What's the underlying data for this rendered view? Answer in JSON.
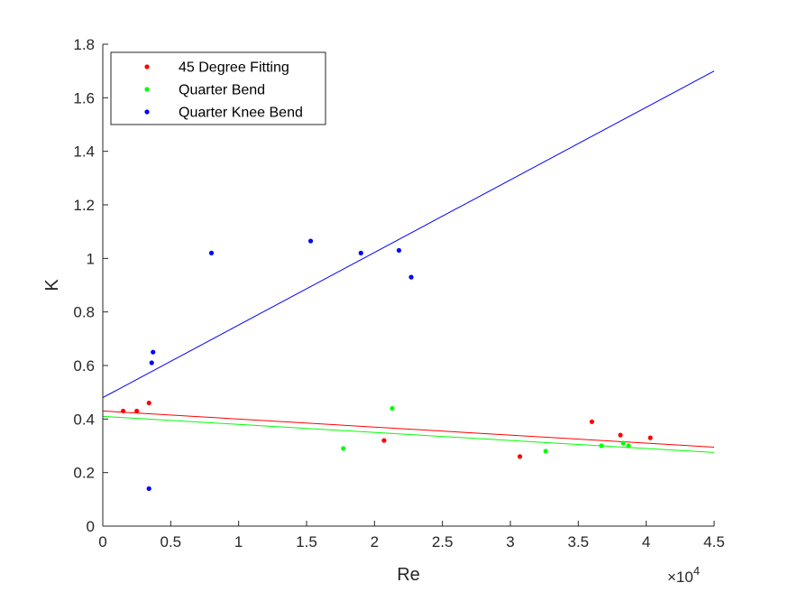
{
  "chart_data": {
    "type": "scatter",
    "xlabel": "Re",
    "ylabel": "K",
    "xlim": [
      0,
      45000
    ],
    "ylim": [
      0,
      1.8
    ],
    "x_ticks": [
      0,
      5000,
      10000,
      15000,
      20000,
      25000,
      30000,
      35000,
      40000,
      45000
    ],
    "x_tick_labels": [
      "0",
      "0.5",
      "1",
      "1.5",
      "2",
      "2.5",
      "3",
      "3.5",
      "4",
      "4.5"
    ],
    "x_multiplier": {
      "base": "×10",
      "exponent": "4"
    },
    "y_ticks": [
      0,
      0.2,
      0.4,
      0.6,
      0.8,
      1,
      1.2,
      1.4,
      1.6,
      1.8
    ],
    "y_tick_labels": [
      "0",
      "0.2",
      "0.4",
      "0.6",
      "0.8",
      "1",
      "1.2",
      "1.4",
      "1.6",
      "1.8"
    ],
    "grid": false,
    "legend_position": "top-left",
    "series": [
      {
        "name": "45 Degree Fitting",
        "color": "#ff0000",
        "points": [
          {
            "x": 1500,
            "y": 0.43
          },
          {
            "x": 2500,
            "y": 0.43
          },
          {
            "x": 3400,
            "y": 0.46
          },
          {
            "x": 20700,
            "y": 0.32
          },
          {
            "x": 30700,
            "y": 0.26
          },
          {
            "x": 36000,
            "y": 0.39
          },
          {
            "x": 38100,
            "y": 0.34
          },
          {
            "x": 40300,
            "y": 0.33
          }
        ],
        "fit": {
          "x": [
            0,
            45000
          ],
          "y": [
            0.43,
            0.295
          ]
        }
      },
      {
        "name": "Quarter Bend",
        "color": "#00ff00",
        "points": [
          {
            "x": 17700,
            "y": 0.29
          },
          {
            "x": 21300,
            "y": 0.44
          },
          {
            "x": 32600,
            "y": 0.28
          },
          {
            "x": 36700,
            "y": 0.3
          },
          {
            "x": 38300,
            "y": 0.31
          },
          {
            "x": 38700,
            "y": 0.3
          }
        ],
        "fit": {
          "x": [
            0,
            45000
          ],
          "y": [
            0.41,
            0.275
          ]
        }
      },
      {
        "name": "Quarter Knee Bend",
        "color": "#0000ff",
        "points": [
          {
            "x": 3400,
            "y": 0.14
          },
          {
            "x": 3600,
            "y": 0.61
          },
          {
            "x": 3700,
            "y": 0.65
          },
          {
            "x": 8000,
            "y": 1.02
          },
          {
            "x": 15300,
            "y": 1.065
          },
          {
            "x": 19000,
            "y": 1.02
          },
          {
            "x": 21800,
            "y": 1.03
          },
          {
            "x": 22700,
            "y": 0.93
          }
        ],
        "fit": {
          "x": [
            0,
            45000
          ],
          "y": [
            0.48,
            1.7
          ]
        }
      }
    ]
  }
}
